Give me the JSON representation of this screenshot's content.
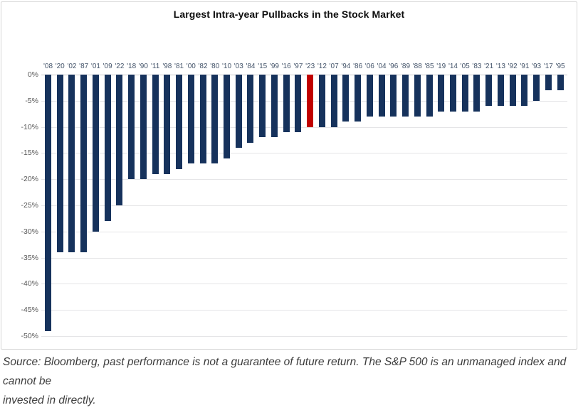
{
  "chart_data": {
    "type": "bar",
    "title": "Largest Intra-year Pullbacks in the Stock Market",
    "categories": [
      "'08",
      "'20",
      "'02",
      "'87",
      "'01",
      "'09",
      "'22",
      "'18",
      "'90",
      "'11",
      "'98",
      "'81",
      "'00",
      "'82",
      "'80",
      "'10",
      "'03",
      "'84",
      "'15",
      "'99",
      "'16",
      "'97",
      "'23",
      "'12",
      "'07",
      "'94",
      "'86",
      "'06",
      "'04",
      "'96",
      "'89",
      "'88",
      "'85",
      "'19",
      "'14",
      "'05",
      "'83",
      "'21",
      "'13",
      "'92",
      "'91",
      "'93",
      "'17",
      "'95"
    ],
    "values": [
      -49,
      -34,
      -34,
      -34,
      -30,
      -28,
      -25,
      -20,
      -20,
      -19,
      -19,
      -18,
      -17,
      -17,
      -17,
      -16,
      -14,
      -13,
      -12,
      -12,
      -11,
      -11,
      -10,
      -10,
      -10,
      -9,
      -9,
      -8,
      -8,
      -8,
      -8,
      -8,
      -8,
      -7,
      -7,
      -7,
      -7,
      -6,
      -6,
      -6,
      -6,
      -5,
      -3,
      -3
    ],
    "highlight_category": "'23",
    "xlabel": "",
    "ylabel": "",
    "ylim": [
      0,
      -50
    ],
    "y_ticks": [
      "0%",
      "-5%",
      "-10%",
      "-15%",
      "-20%",
      "-25%",
      "-30%",
      "-35%",
      "-40%",
      "-45%",
      "-50%"
    ],
    "grid": "horizontal",
    "legend": "none",
    "bar_color": "#16325C",
    "highlight_color": "#C00000"
  },
  "footer": {
    "source_line1": "Source: Bloomberg, past performance is not a guarantee of future return. The S&P 500 is an unmanaged index and cannot be",
    "source_line2": "invested in directly."
  }
}
